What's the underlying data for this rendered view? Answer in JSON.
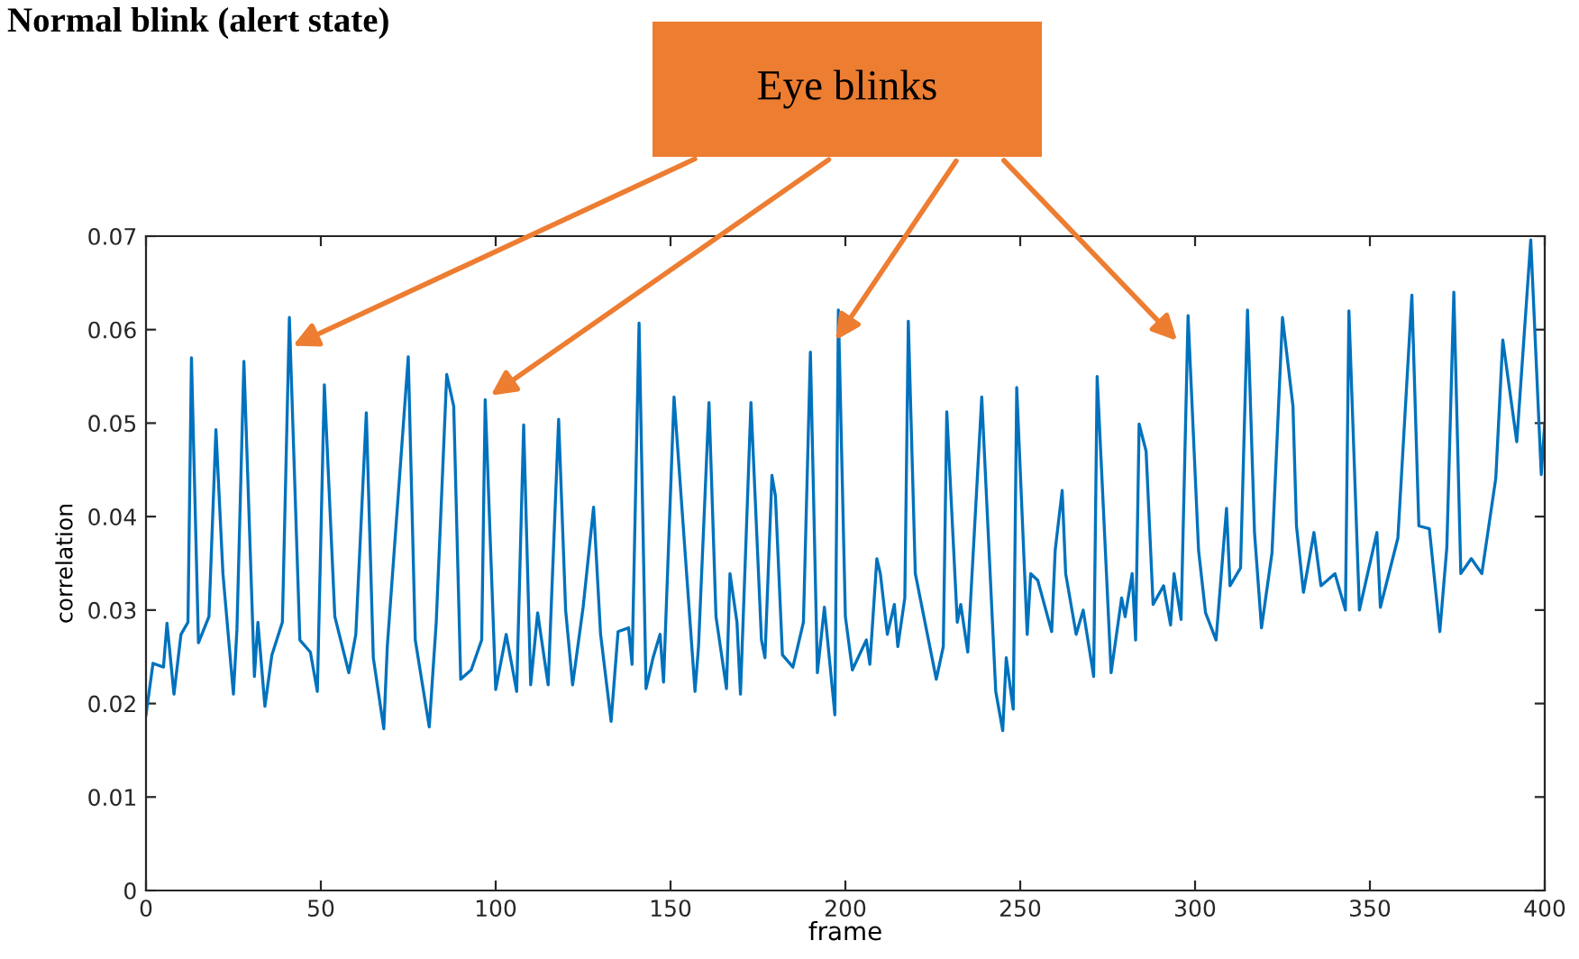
{
  "chart_data": {
    "type": "line",
    "title": "Normal blink (alert state)",
    "xlabel": "frame",
    "ylabel": "correlation",
    "xlim": [
      0,
      400
    ],
    "xticks": [
      0,
      50,
      100,
      150,
      200,
      250,
      300,
      350,
      400
    ],
    "ylim": [
      0,
      0.07
    ],
    "yticks": [
      0,
      0.01,
      0.02,
      0.03,
      0.04,
      0.05,
      0.06,
      0.07
    ],
    "grid": false,
    "legend": false,
    "annotations": [
      "Eye blinks"
    ],
    "series": [
      {
        "color": "#0072bd",
        "x": [
          0,
          2,
          5,
          6,
          8,
          10,
          12,
          13,
          15,
          18,
          20,
          22,
          25,
          26,
          28,
          31,
          32,
          34,
          36,
          39,
          41,
          44,
          47,
          49,
          51,
          54,
          58,
          60,
          63,
          65,
          68,
          69,
          75,
          77,
          81,
          83,
          86,
          88,
          90,
          93,
          96,
          97,
          100,
          103,
          106,
          108,
          110,
          112,
          115,
          118,
          120,
          122,
          125,
          128,
          130,
          133,
          135,
          138,
          139,
          141,
          143,
          145,
          147,
          148,
          151,
          157,
          158,
          161,
          163,
          166,
          167,
          169,
          170,
          173,
          176,
          177,
          179,
          180,
          182,
          185,
          188,
          190,
          192,
          194,
          197,
          198,
          200,
          202,
          206,
          207,
          209,
          210,
          212,
          214,
          215,
          217,
          218,
          220,
          226,
          228,
          229,
          232,
          233,
          235,
          239,
          243,
          245,
          246,
          248,
          249,
          252,
          253,
          255,
          259,
          260,
          262,
          263,
          266,
          268,
          271,
          272,
          276,
          279,
          280,
          282,
          283,
          284,
          286,
          288,
          291,
          293,
          294,
          296,
          298,
          301,
          303,
          306,
          309,
          310,
          313,
          315,
          317,
          319,
          322,
          325,
          328,
          329,
          331,
          334,
          336,
          340,
          343,
          344,
          347,
          352,
          353,
          358,
          362,
          364,
          367,
          370,
          372,
          374,
          376,
          379,
          382,
          386,
          388,
          392,
          396,
          399,
          400
        ],
        "values": [
          0.0188,
          0.0243,
          0.0239,
          0.0286,
          0.021,
          0.0274,
          0.0287,
          0.057,
          0.0265,
          0.0293,
          0.0493,
          0.0339,
          0.021,
          0.0279,
          0.0566,
          0.0229,
          0.0287,
          0.0197,
          0.0252,
          0.0287,
          0.0613,
          0.0268,
          0.0255,
          0.0213,
          0.0541,
          0.0293,
          0.0233,
          0.0274,
          0.0511,
          0.0249,
          0.0173,
          0.0261,
          0.0571,
          0.0268,
          0.0175,
          0.0287,
          0.0552,
          0.0518,
          0.0226,
          0.0236,
          0.0268,
          0.0525,
          0.0215,
          0.0274,
          0.0213,
          0.0498,
          0.022,
          0.0297,
          0.022,
          0.0504,
          0.03,
          0.022,
          0.0303,
          0.041,
          0.0274,
          0.0181,
          0.0277,
          0.0281,
          0.0242,
          0.0607,
          0.0216,
          0.0249,
          0.0274,
          0.0223,
          0.0528,
          0.0213,
          0.0261,
          0.0522,
          0.0293,
          0.0216,
          0.0339,
          0.0287,
          0.021,
          0.0522,
          0.0268,
          0.0249,
          0.0444,
          0.0422,
          0.0252,
          0.0239,
          0.0287,
          0.0576,
          0.0233,
          0.0303,
          0.0188,
          0.0621,
          0.0293,
          0.0236,
          0.0268,
          0.0242,
          0.0355,
          0.0339,
          0.0274,
          0.0306,
          0.0261,
          0.0313,
          0.0609,
          0.0339,
          0.0226,
          0.0261,
          0.0512,
          0.0287,
          0.0306,
          0.0255,
          0.0528,
          0.0213,
          0.0171,
          0.0249,
          0.0194,
          0.0538,
          0.0274,
          0.0339,
          0.0332,
          0.0277,
          0.0364,
          0.0428,
          0.0339,
          0.0274,
          0.03,
          0.0229,
          0.055,
          0.0233,
          0.0313,
          0.0293,
          0.0339,
          0.0268,
          0.0499,
          0.047,
          0.0306,
          0.0326,
          0.0284,
          0.0339,
          0.029,
          0.0615,
          0.0364,
          0.0297,
          0.0268,
          0.0409,
          0.0326,
          0.0345,
          0.0621,
          0.0383,
          0.0281,
          0.0361,
          0.0613,
          0.0518,
          0.039,
          0.0319,
          0.0383,
          0.0326,
          0.0339,
          0.03,
          0.062,
          0.03,
          0.0383,
          0.0303,
          0.0377,
          0.0637,
          0.039,
          0.0387,
          0.0277,
          0.0367,
          0.064,
          0.0339,
          0.0355,
          0.0339,
          0.0441,
          0.0589,
          0.048,
          0.0696,
          0.0445,
          0.05
        ]
      }
    ]
  }
}
